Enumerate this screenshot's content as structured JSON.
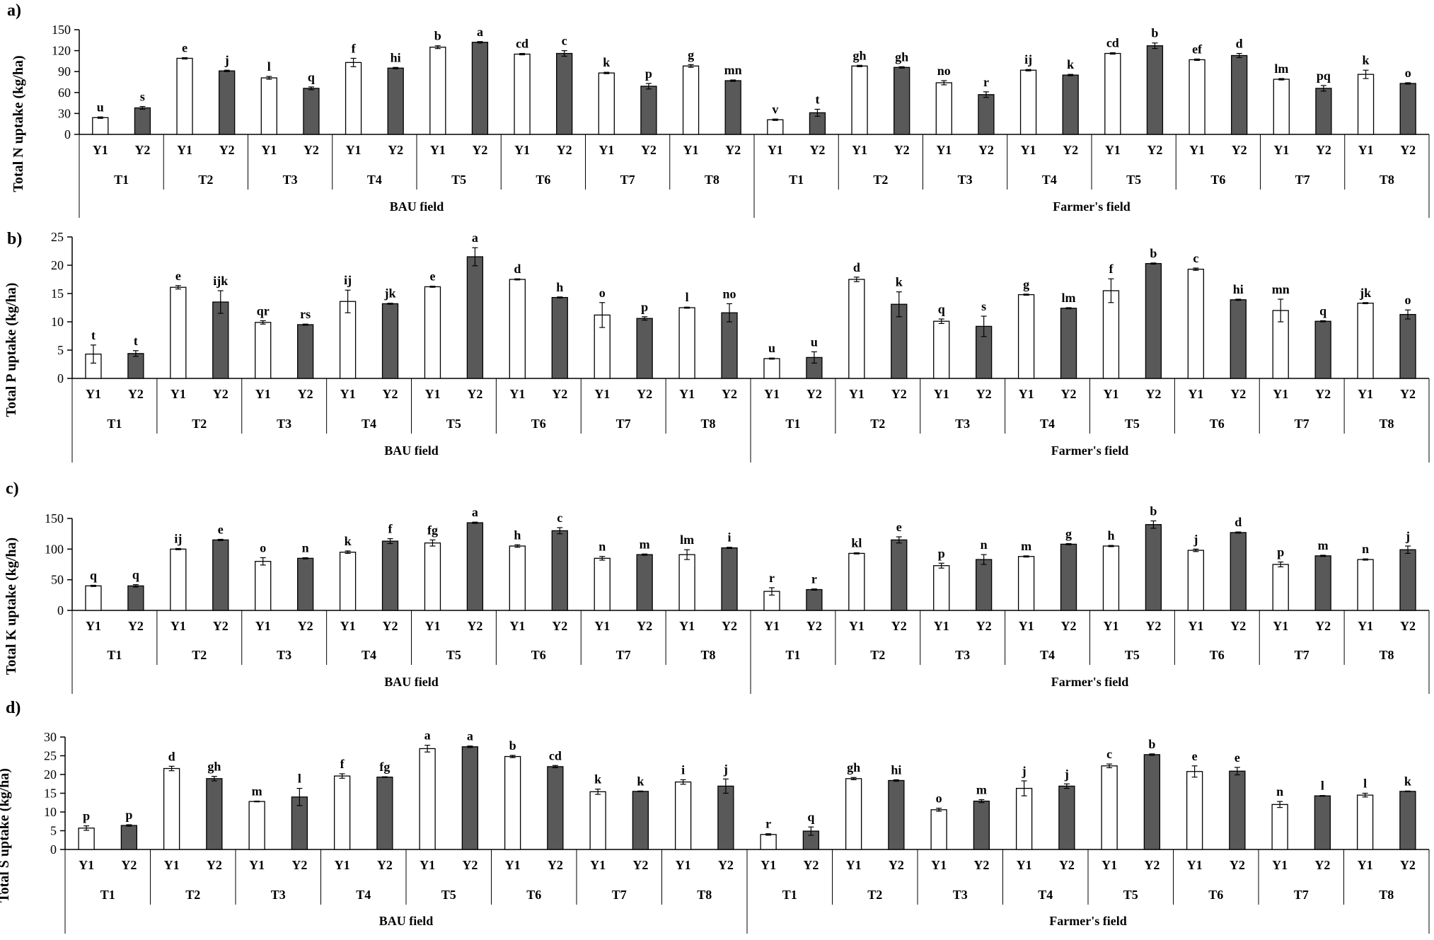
{
  "chart_data": [
    {
      "type": "bar",
      "panel": "a)",
      "ylabel": "Total N uptake (kg/ha)",
      "ylim": [
        0,
        150
      ],
      "yticks": [
        "0",
        "30",
        "60",
        "90",
        "120",
        "150"
      ],
      "fields": [
        "BAU field",
        "Farmer's field"
      ],
      "treatments": [
        "T1",
        "T2",
        "T3",
        "T4",
        "T5",
        "T6",
        "T7",
        "T8"
      ],
      "years": [
        "Y1",
        "Y2"
      ],
      "series": [
        {
          "field": "BAU field",
          "name": "Y1",
          "values": [
            24,
            109,
            81,
            103,
            125,
            115,
            88,
            98
          ],
          "errors": [
            1,
            1,
            2,
            6,
            2,
            1,
            1,
            2
          ],
          "letters": [
            "u",
            "e",
            "l",
            "f",
            "b",
            "cd",
            "k",
            "g"
          ]
        },
        {
          "field": "BAU field",
          "name": "Y2",
          "values": [
            38,
            91,
            66,
            95,
            132,
            116,
            69,
            77
          ],
          "errors": [
            2,
            1,
            2,
            1,
            1,
            4,
            4,
            1
          ],
          "letters": [
            "s",
            "j",
            "q",
            "hi",
            "a",
            "c",
            "p",
            "mn"
          ]
        },
        {
          "field": "Farmer's field",
          "name": "Y1",
          "values": [
            21,
            98,
            74,
            92,
            116,
            107,
            79,
            86
          ],
          "errors": [
            1,
            1,
            3,
            1,
            1,
            1,
            1,
            6
          ],
          "letters": [
            "v",
            "gh",
            "no",
            "ij",
            "cd",
            "ef",
            "lm",
            "k"
          ]
        },
        {
          "field": "Farmer's field",
          "name": "Y2",
          "values": [
            31,
            96,
            57,
            85,
            127,
            113,
            66,
            73
          ],
          "errors": [
            5,
            1,
            4,
            1,
            4,
            3,
            4,
            1
          ],
          "letters": [
            "t",
            "gh",
            "r",
            "k",
            "b",
            "d",
            "pq",
            "o"
          ]
        }
      ]
    },
    {
      "type": "bar",
      "panel": "b)",
      "ylabel": "Total P uptake (kg/ha)",
      "ylim": [
        0,
        25
      ],
      "yticks": [
        "0",
        "5",
        "10",
        "15",
        "20",
        "25"
      ],
      "fields": [
        "BAU field",
        "Farmer's field"
      ],
      "treatments": [
        "T1",
        "T2",
        "T3",
        "T4",
        "T5",
        "T6",
        "T7",
        "T8"
      ],
      "years": [
        "Y1",
        "Y2"
      ],
      "series": [
        {
          "field": "BAU field",
          "name": "Y1",
          "values": [
            4.3,
            16.1,
            9.9,
            13.6,
            16.2,
            17.5,
            11.2,
            12.5
          ],
          "errors": [
            1.6,
            0.3,
            0.3,
            2.0,
            0.1,
            0.1,
            2.2,
            0.1
          ],
          "letters": [
            "t",
            "e",
            "qr",
            "ij",
            "e",
            "d",
            "o",
            "l"
          ]
        },
        {
          "field": "BAU field",
          "name": "Y2",
          "values": [
            4.4,
            13.5,
            9.5,
            13.2,
            21.5,
            14.3,
            10.6,
            11.6
          ],
          "errors": [
            0.5,
            2.0,
            0.1,
            0.1,
            1.6,
            0.1,
            0.3,
            1.6
          ],
          "letters": [
            "t",
            "ijk",
            "rs",
            "jk",
            "a",
            "h",
            "p",
            "no"
          ]
        },
        {
          "field": "Farmer's field",
          "name": "Y1",
          "values": [
            3.5,
            17.5,
            10.1,
            14.8,
            15.5,
            19.3,
            12.0,
            13.3
          ],
          "errors": [
            0.1,
            0.4,
            0.4,
            0.1,
            2.1,
            0.2,
            2.0,
            0.1
          ],
          "letters": [
            "u",
            "d",
            "q",
            "g",
            "f",
            "c",
            "mn",
            "jk"
          ]
        },
        {
          "field": "Farmer's field",
          "name": "Y2",
          "values": [
            3.7,
            13.1,
            9.2,
            12.4,
            20.3,
            13.9,
            10.1,
            11.3
          ],
          "errors": [
            1.0,
            2.2,
            1.8,
            0.1,
            0.1,
            0.1,
            0.1,
            0.8
          ],
          "letters": [
            "u",
            "k",
            "s",
            "lm",
            "b",
            "hi",
            "q",
            "o"
          ]
        }
      ]
    },
    {
      "type": "bar",
      "panel": "c)",
      "ylabel": "Total K uptake (kg/ha)",
      "ylim": [
        0,
        150
      ],
      "yticks": [
        "0",
        "50",
        "100",
        "150"
      ],
      "fields": [
        "BAU field",
        "Farmer's field"
      ],
      "treatments": [
        "T1",
        "T2",
        "T3",
        "T4",
        "T5",
        "T6",
        "T7",
        "T8"
      ],
      "years": [
        "Y1",
        "Y2"
      ],
      "series": [
        {
          "field": "BAU field",
          "name": "Y1",
          "values": [
            40,
            100,
            80,
            95,
            110,
            105,
            85,
            91
          ],
          "errors": [
            1,
            1,
            6,
            2,
            5,
            2,
            3,
            8
          ],
          "letters": [
            "q",
            "ij",
            "o",
            "k",
            "fg",
            "h",
            "n",
            "lm"
          ]
        },
        {
          "field": "BAU field",
          "name": "Y2",
          "values": [
            40,
            115,
            85,
            113,
            143,
            130,
            91,
            102
          ],
          "errors": [
            2,
            1,
            1,
            4,
            1,
            5,
            1,
            1
          ],
          "letters": [
            "q",
            "e",
            "n",
            "f",
            "a",
            "c",
            "m",
            "i"
          ]
        },
        {
          "field": "Farmer's field",
          "name": "Y1",
          "values": [
            31,
            93,
            73,
            88,
            105,
            98,
            75,
            83
          ],
          "errors": [
            6,
            1,
            4,
            1,
            1,
            2,
            4,
            1
          ],
          "letters": [
            "r",
            "kl",
            "p",
            "m",
            "h",
            "j",
            "p",
            "n"
          ]
        },
        {
          "field": "Farmer's field",
          "name": "Y2",
          "values": [
            34,
            115,
            83,
            108,
            140,
            127,
            89,
            99
          ],
          "errors": [
            1,
            5,
            8,
            1,
            6,
            1,
            1,
            6
          ],
          "letters": [
            "r",
            "e",
            "n",
            "g",
            "b",
            "d",
            "m",
            "j"
          ]
        }
      ]
    },
    {
      "type": "bar",
      "panel": "d)",
      "ylabel": "Total S uptake (kg/ha)",
      "ylim": [
        0,
        30
      ],
      "yticks": [
        "0",
        "5",
        "10",
        "15",
        "20",
        "25",
        "30"
      ],
      "fields": [
        "BAU field",
        "Farmer's field"
      ],
      "treatments": [
        "T1",
        "T2",
        "T3",
        "T4",
        "T5",
        "T6",
        "T7",
        "T8"
      ],
      "years": [
        "Y1",
        "Y2"
      ],
      "series": [
        {
          "field": "BAU field",
          "name": "Y1",
          "values": [
            5.7,
            21.6,
            12.8,
            19.6,
            26.9,
            24.8,
            15.4,
            18.0
          ],
          "errors": [
            0.6,
            0.6,
            0.1,
            0.6,
            0.9,
            0.3,
            0.7,
            0.6
          ],
          "letters": [
            "p",
            "d",
            "m",
            "f",
            "a",
            "b",
            "k",
            "i"
          ]
        },
        {
          "field": "BAU field",
          "name": "Y2",
          "values": [
            6.4,
            18.9,
            14.0,
            19.3,
            27.4,
            22.1,
            15.5,
            16.9
          ],
          "errors": [
            0.2,
            0.6,
            2.3,
            0.1,
            0.2,
            0.3,
            0.1,
            1.9
          ],
          "letters": [
            "p",
            "gh",
            "l",
            "fg",
            "a",
            "cd",
            "k",
            "j"
          ]
        },
        {
          "field": "Farmer's field",
          "name": "Y1",
          "values": [
            4.0,
            18.9,
            10.6,
            16.3,
            22.3,
            20.8,
            12.0,
            14.5
          ],
          "errors": [
            0.2,
            0.3,
            0.4,
            2.0,
            0.5,
            1.5,
            0.8,
            0.5
          ],
          "letters": [
            "r",
            "gh",
            "o",
            "j",
            "c",
            "e",
            "n",
            "l"
          ]
        },
        {
          "field": "Farmer's field",
          "name": "Y2",
          "values": [
            4.9,
            18.4,
            12.9,
            16.9,
            25.3,
            20.9,
            14.3,
            15.5
          ],
          "errors": [
            1.1,
            0.2,
            0.4,
            0.6,
            0.2,
            1.0,
            0.1,
            0.1
          ],
          "letters": [
            "q",
            "hi",
            "m",
            "j",
            "b",
            "e",
            "l",
            "k"
          ]
        }
      ]
    }
  ],
  "colors": {
    "y1_fill": "#ffffff",
    "y2_fill": "#595959",
    "stroke": "#000000",
    "text": "#000000"
  }
}
